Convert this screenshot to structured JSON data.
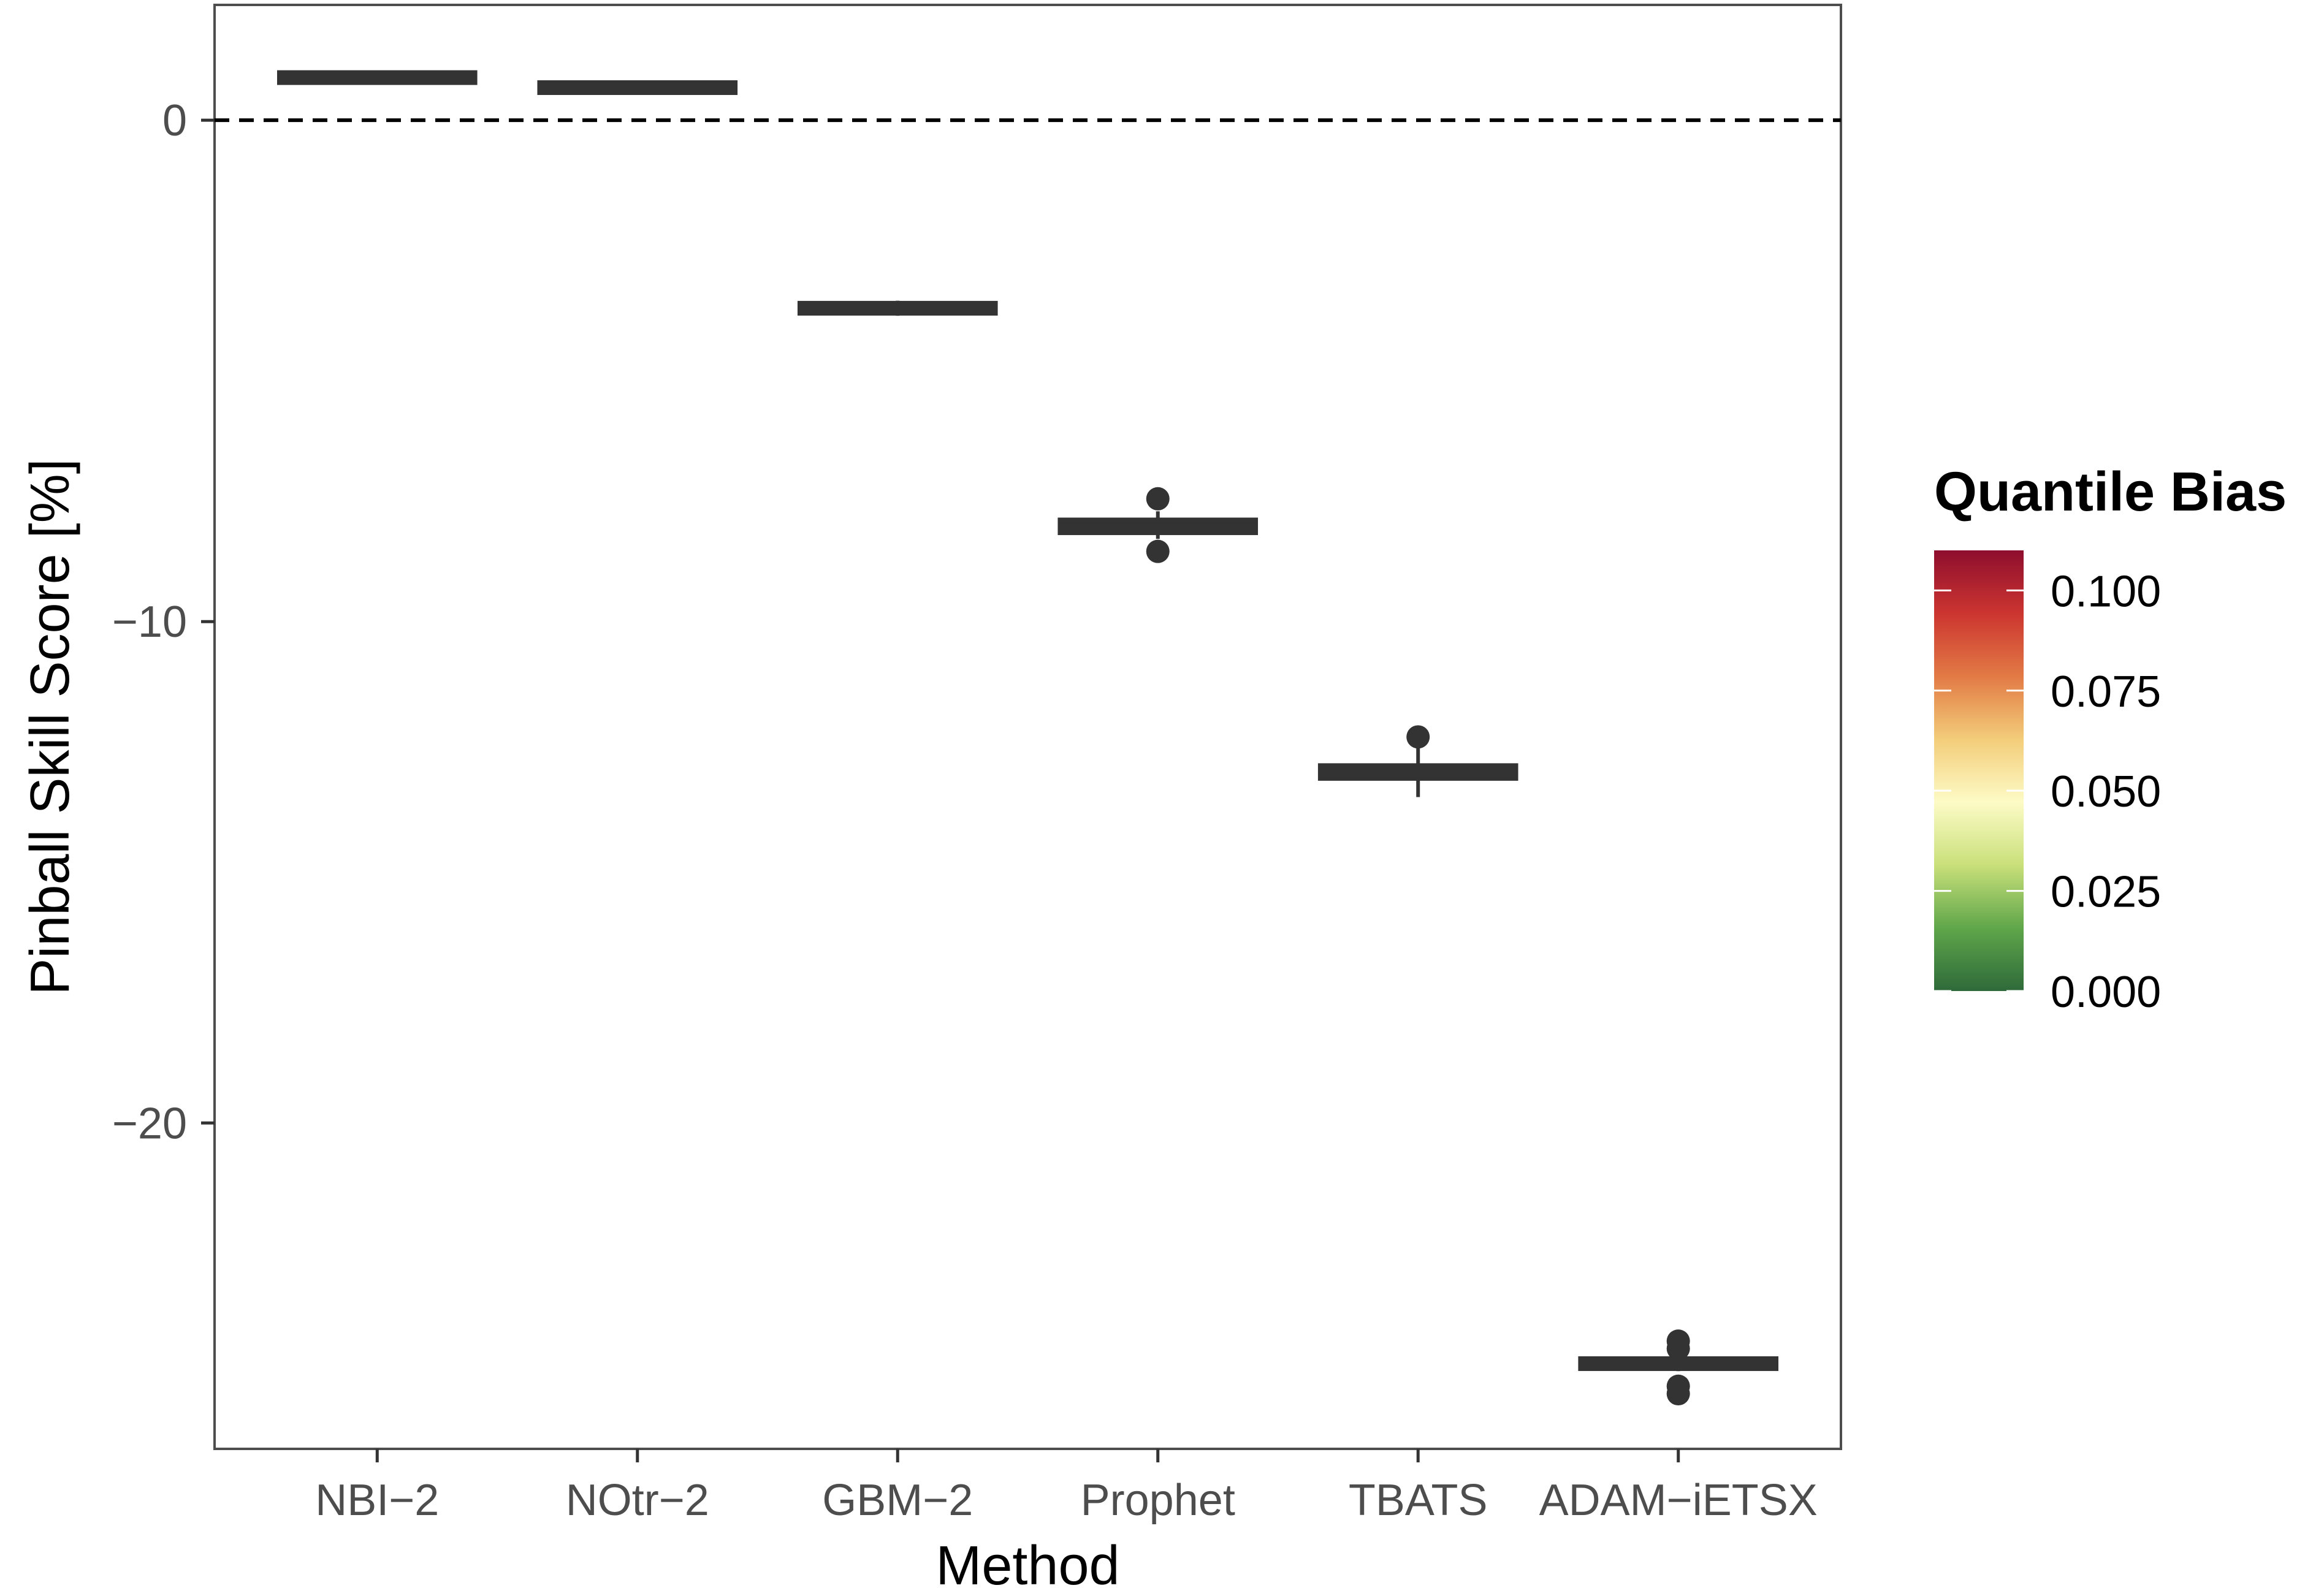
{
  "chart_data": {
    "type": "boxplot",
    "xlabel": "Method",
    "ylabel": "Pinball Skill Score [%]",
    "categories": [
      "NBI−2",
      "NOtr−2",
      "GBM−2",
      "Prophet",
      "TBATS",
      "ADAM−iETSX"
    ],
    "ylim": [
      -26.5,
      2.3
    ],
    "yticks": [
      0,
      -10,
      -20
    ],
    "ytick_labels": [
      "0",
      "−10",
      "−20"
    ],
    "reference_line": {
      "y": 0,
      "style": "dashed"
    },
    "grid": false,
    "boxes": [
      {
        "category": "NBI−2",
        "median": 0.85,
        "q1": 0.8,
        "q3": 0.9,
        "whisker_low": 0.75,
        "whisker_high": 0.95,
        "outliers": [],
        "quantile_bias": 0.0
      },
      {
        "category": "NOtr−2",
        "median": 0.65,
        "q1": 0.6,
        "q3": 0.7,
        "whisker_low": 0.55,
        "whisker_high": 0.75,
        "outliers": [],
        "quantile_bias": 0.0
      },
      {
        "category": "GBM−2",
        "median": -3.75,
        "q1": -3.8,
        "q3": -3.7,
        "whisker_low": -3.9,
        "whisker_high": -3.6,
        "outliers": [],
        "quantile_bias": 0.0
      },
      {
        "category": "Prophet",
        "median": -8.1,
        "q1": -8.25,
        "q3": -7.95,
        "whisker_low": -8.35,
        "whisker_high": -7.8,
        "outliers": [
          -7.55,
          -8.6
        ],
        "quantile_bias": 0.0
      },
      {
        "category": "TBATS",
        "median": -13.0,
        "q1": -13.15,
        "q3": -12.85,
        "whisker_low": -13.5,
        "whisker_high": -12.5,
        "outliers": [
          -12.3
        ],
        "quantile_bias": 0.0
      },
      {
        "category": "ADAM−iETSX",
        "median": -24.8,
        "q1": -24.9,
        "q3": -24.7,
        "whisker_low": -24.95,
        "whisker_high": -24.65,
        "outliers": [
          -24.35,
          -24.5,
          -25.25,
          -25.4
        ],
        "quantile_bias": 0.0
      }
    ],
    "legend": {
      "title": "Quantile Bias",
      "type": "colorbar",
      "placement": "right",
      "range": [
        0.0,
        0.11
      ],
      "ticks": [
        0.1,
        0.075,
        0.05,
        0.025,
        0.0
      ],
      "tick_labels": [
        "0.100",
        "0.075",
        "0.050",
        "0.025",
        "0.000"
      ],
      "colors": [
        "#2e6a3a",
        "#5fa64a",
        "#c9e07a",
        "#fdfbc6",
        "#f3cd7a",
        "#e27a45",
        "#cc3530",
        "#8e0e2e"
      ]
    },
    "box_color": "#333333",
    "panel_border_color": "#4d4d4d"
  }
}
